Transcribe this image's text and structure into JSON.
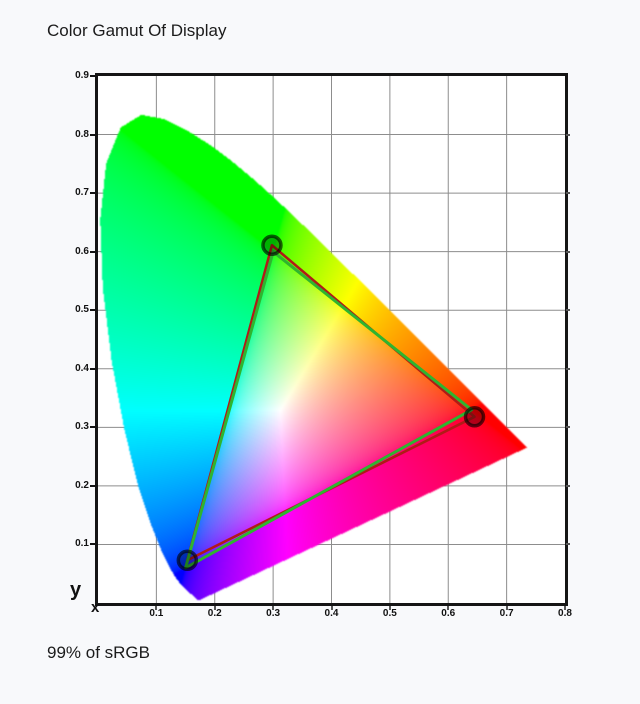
{
  "page": {
    "background": "#f8f9fb"
  },
  "header": {
    "title": "Color Gamut Of Display"
  },
  "footer": {
    "coverage_text": "99% of sRGB"
  },
  "chart_data": {
    "type": "scatter",
    "subtype": "cie-1931-chromaticity-diagram",
    "title": "Color Gamut Of Display",
    "xlabel": "x",
    "ylabel": "y",
    "xlim": [
      0,
      0.8
    ],
    "ylim": [
      0,
      0.9
    ],
    "grid": true,
    "grid_color": "#8d8d8d",
    "frame_color": "#151515",
    "annotation": "99% of sRGB",
    "x_tick_labels": [
      "0.1",
      "0.2",
      "0.3",
      "0.4",
      "0.5",
      "0.6",
      "0.7",
      "0.8"
    ],
    "y_tick_labels": [
      "0.1",
      "0.2",
      "0.3",
      "0.4",
      "0.5",
      "0.6",
      "0.7",
      "0.8",
      "0.9"
    ],
    "series": [
      {
        "name": "display-gamut-triangle",
        "color": "#b01b17",
        "line_width": 2.6,
        "closed": true,
        "markers": true,
        "points": [
          [
            0.645,
            0.318
          ],
          [
            0.298,
            0.611
          ],
          [
            0.153,
            0.073
          ]
        ]
      },
      {
        "name": "srgb-reference-triangle",
        "color": "#2fb42f",
        "line_width": 3,
        "closed": true,
        "markers": false,
        "points": [
          [
            0.64,
            0.33
          ],
          [
            0.3,
            0.6
          ],
          [
            0.15,
            0.06
          ]
        ]
      }
    ],
    "marker": {
      "radius": 9,
      "fill": "rgba(0,0,0,0.30)",
      "stroke": "rgba(0,0,0,0.62)",
      "stroke_width": 3.5
    },
    "spectral_locus": [
      [
        0.1741,
        0.005
      ],
      [
        0.174,
        0.005
      ],
      [
        0.1738,
        0.0049
      ],
      [
        0.1736,
        0.0049
      ],
      [
        0.1733,
        0.0048
      ],
      [
        0.173,
        0.0048
      ],
      [
        0.1726,
        0.0048
      ],
      [
        0.1721,
        0.0048
      ],
      [
        0.1714,
        0.0051
      ],
      [
        0.1703,
        0.0058
      ],
      [
        0.1689,
        0.0069
      ],
      [
        0.1669,
        0.0086
      ],
      [
        0.1644,
        0.0109
      ],
      [
        0.1611,
        0.0138
      ],
      [
        0.1566,
        0.0177
      ],
      [
        0.151,
        0.0227
      ],
      [
        0.144,
        0.0297
      ],
      [
        0.1355,
        0.0399
      ],
      [
        0.1241,
        0.0578
      ],
      [
        0.1096,
        0.0868
      ],
      [
        0.0913,
        0.1327
      ],
      [
        0.0687,
        0.2007
      ],
      [
        0.0454,
        0.295
      ],
      [
        0.0235,
        0.4127
      ],
      [
        0.0082,
        0.5384
      ],
      [
        0.0039,
        0.6548
      ],
      [
        0.0139,
        0.7502
      ],
      [
        0.0389,
        0.812
      ],
      [
        0.0743,
        0.8338
      ],
      [
        0.1142,
        0.8262
      ],
      [
        0.1547,
        0.8059
      ],
      [
        0.1929,
        0.7816
      ],
      [
        0.2296,
        0.7543
      ],
      [
        0.2658,
        0.7243
      ],
      [
        0.3016,
        0.6923
      ],
      [
        0.3373,
        0.6589
      ],
      [
        0.3731,
        0.6245
      ],
      [
        0.4087,
        0.5896
      ],
      [
        0.4441,
        0.5547
      ],
      [
        0.4788,
        0.5202
      ],
      [
        0.5125,
        0.4866
      ],
      [
        0.5448,
        0.4544
      ],
      [
        0.5752,
        0.4242
      ],
      [
        0.6029,
        0.3965
      ],
      [
        0.627,
        0.3725
      ],
      [
        0.6482,
        0.3514
      ],
      [
        0.6658,
        0.334
      ],
      [
        0.6801,
        0.3197
      ],
      [
        0.6915,
        0.3083
      ],
      [
        0.7006,
        0.2993
      ],
      [
        0.7079,
        0.292
      ],
      [
        0.714,
        0.2859
      ],
      [
        0.719,
        0.2809
      ],
      [
        0.723,
        0.277
      ],
      [
        0.726,
        0.274
      ],
      [
        0.7283,
        0.2717
      ],
      [
        0.73,
        0.27
      ],
      [
        0.7311,
        0.2689
      ],
      [
        0.732,
        0.268
      ],
      [
        0.7327,
        0.2673
      ],
      [
        0.7334,
        0.2666
      ],
      [
        0.734,
        0.266
      ],
      [
        0.7344,
        0.2656
      ],
      [
        0.7346,
        0.2654
      ],
      [
        0.7347,
        0.2653
      ]
    ]
  }
}
